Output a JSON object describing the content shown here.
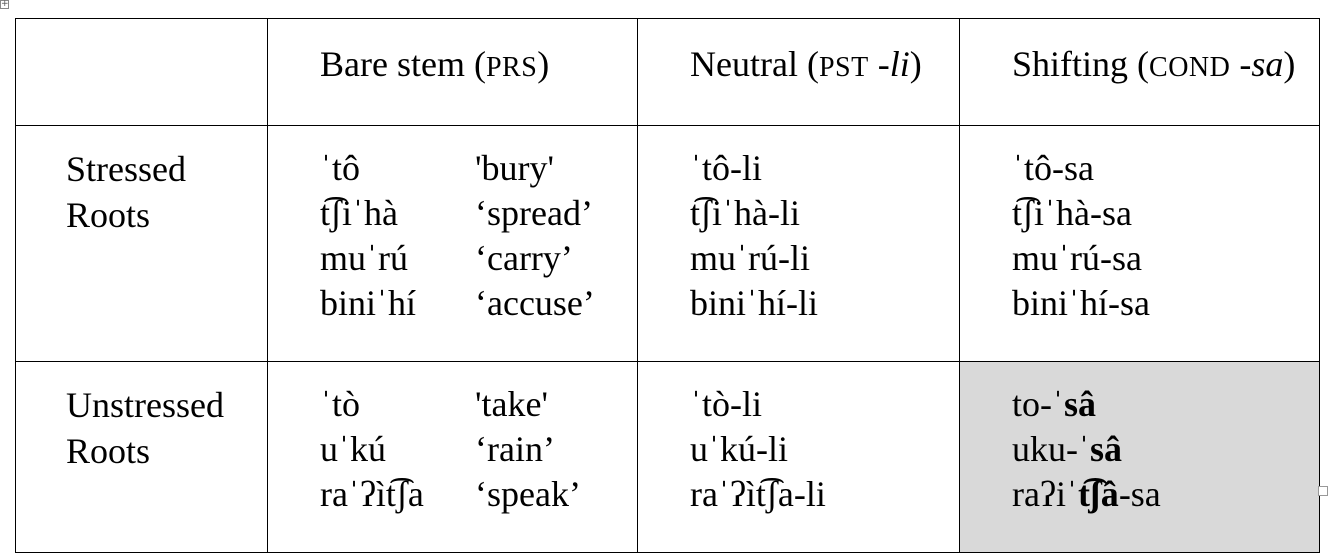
{
  "columns": [
    {
      "main": "",
      "open": "",
      "gloss": "",
      "affix": "",
      "close": ""
    },
    {
      "main": "Bare stem",
      "open": "(",
      "gloss": "PRS",
      "affix": "",
      "close": ")"
    },
    {
      "main": "Neutral",
      "open": "(",
      "gloss": "PST",
      "affix": " -li",
      "close": ")"
    },
    {
      "main": "Shifting",
      "open": "(",
      "gloss": "COND",
      "affix": " -sa",
      "close": ")"
    }
  ],
  "rows": [
    {
      "label": [
        "Stressed",
        "Roots"
      ],
      "bare": [
        {
          "form": "ˈtô",
          "gloss": "'bury'"
        },
        {
          "form": "t͡ʃiˈhà",
          "gloss": "‘spread’"
        },
        {
          "form": "muˈrú",
          "gloss": "‘carry’"
        },
        {
          "form": "biniˈhí",
          "gloss": "‘accuse’"
        }
      ],
      "neutral": [
        "ˈtô-li",
        "t͡ʃiˈhà-li",
        "muˈrú-li",
        "biniˈhí-li"
      ],
      "shifting": [
        {
          "pre": "ˈtô-sa",
          "bold": "",
          "post": ""
        },
        {
          "pre": "t͡ʃiˈhà-sa",
          "bold": "",
          "post": ""
        },
        {
          "pre": "muˈrú-sa",
          "bold": "",
          "post": ""
        },
        {
          "pre": "biniˈhí-sa",
          "bold": "",
          "post": ""
        }
      ]
    },
    {
      "label": [
        "Unstressed",
        "Roots"
      ],
      "bare": [
        {
          "form": "ˈtò",
          "gloss": "'take'"
        },
        {
          "form": "uˈkú",
          "gloss": "‘rain’"
        },
        {
          "form": "raˈʔìt͡ʃa",
          "gloss": "‘speak’"
        }
      ],
      "neutral": [
        "ˈtò-li",
        "uˈkú-li",
        "raˈʔìt͡ʃa-li"
      ],
      "shifting": [
        {
          "pre": "to-ˈ",
          "bold": "sâ",
          "post": ""
        },
        {
          "pre": "uku-ˈ",
          "bold": "sâ",
          "post": ""
        },
        {
          "pre": "raʔiˈ",
          "bold": "t͡ʃâ",
          "post": "-sa"
        }
      ]
    }
  ],
  "colors": {
    "border": "#000000",
    "highlight": "#d9d9d9"
  },
  "icons": {
    "table_handle": "move-handle-icon",
    "resize_handle": "resize-handle-icon"
  }
}
